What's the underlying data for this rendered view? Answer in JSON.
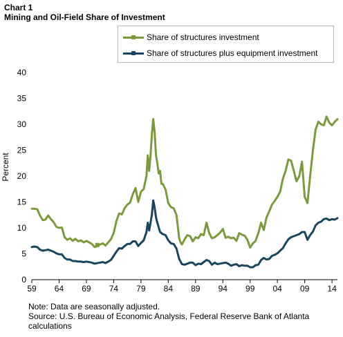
{
  "header": {
    "chart_number": "Chart 1",
    "title": "Mining and Oil-Field Share of Investment"
  },
  "notes": {
    "note": "Note: Data are seasonally adjusted.",
    "source": "Source: U.S. Bureau of Economic Analysis, Federal Reserve Bank of Atlanta",
    "source_cont": "calculations"
  },
  "colors": {
    "structures": "#7c9a3c",
    "structures_equipment": "#17455f",
    "axis": "#000000"
  },
  "chart_data": {
    "type": "line",
    "ylabel": "Percent",
    "xlabel": "",
    "xlim": [
      1959,
      2015
    ],
    "ylim": [
      0,
      40
    ],
    "x_ticks": [
      {
        "label": "59",
        "value": 1959
      },
      {
        "label": "64",
        "value": 1964
      },
      {
        "label": "69",
        "value": 1969
      },
      {
        "label": "74",
        "value": 1974
      },
      {
        "label": "79",
        "value": 1979
      },
      {
        "label": "84",
        "value": 1984
      },
      {
        "label": "89",
        "value": 1989
      },
      {
        "label": "94",
        "value": 1994
      },
      {
        "label": "99",
        "value": 1999
      },
      {
        "label": "04",
        "value": 2004
      },
      {
        "label": "09",
        "value": 2009
      },
      {
        "label": "14",
        "value": 2014
      }
    ],
    "y_ticks": [
      {
        "label": "0",
        "value": 0
      },
      {
        "label": "5",
        "value": 5
      },
      {
        "label": "10",
        "value": 10
      },
      {
        "label": "15",
        "value": 15
      },
      {
        "label": "20",
        "value": 20
      },
      {
        "label": "25",
        "value": 25
      },
      {
        "label": "30",
        "value": 30
      },
      {
        "label": "35",
        "value": 35
      },
      {
        "label": "40",
        "value": 40
      }
    ],
    "grid": false,
    "legend_position": "top-right",
    "series": [
      {
        "name": "Share of structures investment",
        "color_key": "structures",
        "x": [
          1959.0,
          1959.5,
          1960.0,
          1960.5,
          1961.0,
          1961.5,
          1962.0,
          1962.5,
          1963.0,
          1963.5,
          1964.0,
          1964.5,
          1965.0,
          1965.5,
          1966.0,
          1966.5,
          1967.0,
          1967.5,
          1968.0,
          1968.5,
          1969.0,
          1969.5,
          1970.0,
          1970.5,
          1971.0,
          1971.5,
          1972.0,
          1972.5,
          1973.0,
          1973.5,
          1974.0,
          1974.5,
          1975.0,
          1975.5,
          1976.0,
          1976.5,
          1977.0,
          1977.5,
          1978.0,
          1978.5,
          1979.0,
          1979.5,
          1980.0,
          1980.25,
          1980.5,
          1980.75,
          1981.0,
          1981.25,
          1981.5,
          1981.75,
          1982.0,
          1982.25,
          1982.5,
          1982.75,
          1983.0,
          1983.5,
          1984.0,
          1984.5,
          1985.0,
          1985.5,
          1986.0,
          1986.25,
          1986.5,
          1987.0,
          1987.5,
          1988.0,
          1988.5,
          1989.0,
          1989.5,
          1990.0,
          1990.5,
          1991.0,
          1991.5,
          1992.0,
          1992.5,
          1993.0,
          1993.5,
          1994.0,
          1994.5,
          1995.0,
          1995.5,
          1996.0,
          1996.5,
          1997.0,
          1997.5,
          1998.0,
          1998.5,
          1999.0,
          1999.5,
          2000.0,
          2000.5,
          2001.0,
          2001.5,
          2002.0,
          2002.5,
          2003.0,
          2003.5,
          2004.0,
          2004.5,
          2005.0,
          2005.5,
          2006.0,
          2006.5,
          2007.0,
          2007.5,
          2008.0,
          2008.5,
          2009.0,
          2009.5,
          2010.0,
          2010.5,
          2011.0,
          2011.5,
          2012.0,
          2012.5,
          2013.0,
          2013.5,
          2014.0,
          2014.5,
          2015.0
        ],
        "y": [
          13.7,
          13.7,
          13.6,
          12.4,
          11.5,
          11.6,
          12.4,
          11.7,
          11.1,
          10.2,
          10.0,
          10.1,
          8.2,
          7.7,
          8.0,
          7.5,
          7.9,
          7.4,
          7.6,
          7.2,
          7.5,
          7.2,
          6.9,
          6.3,
          6.5,
          6.8,
          7.0,
          6.6,
          7.2,
          7.8,
          9.0,
          11.3,
          12.8,
          12.6,
          13.8,
          14.5,
          14.9,
          16.5,
          17.7,
          15.0,
          17.0,
          17.5,
          20.0,
          24.0,
          21.0,
          24.0,
          28.0,
          31.0,
          28.5,
          24.0,
          22.5,
          20.5,
          21.0,
          18.5,
          18.5,
          17.4,
          14.8,
          14.0,
          13.8,
          12.5,
          8.0,
          7.2,
          6.8,
          7.8,
          8.6,
          8.4,
          7.4,
          8.2,
          8.0,
          8.8,
          8.6,
          11.0,
          9.0,
          8.0,
          8.2,
          8.6,
          9.1,
          9.8,
          8.1,
          8.3,
          8.0,
          8.1,
          7.5,
          9.0,
          8.7,
          8.5,
          7.7,
          6.2,
          7.0,
          7.5,
          9.0,
          11.0,
          9.6,
          12.0,
          13.2,
          14.5,
          15.2,
          16.0,
          17.0,
          19.5,
          21.0,
          23.2,
          23.0,
          21.0,
          19.0,
          20.0,
          22.8,
          16.0,
          14.8,
          20.0,
          25.0,
          29.0,
          30.5,
          30.0,
          29.8,
          31.5,
          30.3,
          29.8,
          30.5,
          31.0
        ],
        "marker_x": 1971.0,
        "marker_y": 6.7
      },
      {
        "name": "Share of structures plus equipment investment",
        "color_key": "structures_equipment",
        "x": [
          1959.0,
          1959.5,
          1960.0,
          1960.5,
          1961.0,
          1961.5,
          1962.0,
          1962.5,
          1963.0,
          1963.5,
          1964.0,
          1964.5,
          1965.0,
          1965.5,
          1966.0,
          1966.5,
          1967.0,
          1967.5,
          1968.0,
          1968.5,
          1969.0,
          1969.5,
          1970.0,
          1970.5,
          1971.0,
          1971.5,
          1972.0,
          1972.5,
          1973.0,
          1973.5,
          1974.0,
          1974.5,
          1975.0,
          1975.5,
          1976.0,
          1976.5,
          1977.0,
          1977.5,
          1978.0,
          1978.5,
          1979.0,
          1979.5,
          1980.0,
          1980.25,
          1980.5,
          1980.75,
          1981.0,
          1981.25,
          1981.5,
          1981.75,
          1982.0,
          1982.5,
          1983.0,
          1983.5,
          1984.0,
          1984.5,
          1985.0,
          1985.5,
          1986.0,
          1986.5,
          1987.0,
          1987.5,
          1988.0,
          1988.5,
          1989.0,
          1989.5,
          1990.0,
          1990.5,
          1991.0,
          1991.5,
          1992.0,
          1992.5,
          1993.0,
          1993.5,
          1994.0,
          1994.5,
          1995.0,
          1995.5,
          1996.0,
          1996.5,
          1997.0,
          1997.5,
          1998.0,
          1998.5,
          1999.0,
          1999.5,
          2000.0,
          2000.5,
          2001.0,
          2001.5,
          2002.0,
          2002.5,
          2003.0,
          2003.5,
          2004.0,
          2004.5,
          2005.0,
          2005.5,
          2006.0,
          2006.5,
          2007.0,
          2007.5,
          2008.0,
          2008.5,
          2009.0,
          2009.5,
          2010.0,
          2010.5,
          2011.0,
          2011.5,
          2012.0,
          2012.5,
          2013.0,
          2013.5,
          2014.0,
          2014.5,
          2015.0
        ],
        "y": [
          6.3,
          6.4,
          6.3,
          5.8,
          5.6,
          5.7,
          5.8,
          5.6,
          5.4,
          5.1,
          4.9,
          4.9,
          4.2,
          3.9,
          3.9,
          3.6,
          3.6,
          3.5,
          3.5,
          3.4,
          3.5,
          3.4,
          3.3,
          3.1,
          3.2,
          3.3,
          3.4,
          3.2,
          3.5,
          3.8,
          4.6,
          5.4,
          6.1,
          6.0,
          6.5,
          6.9,
          6.9,
          7.4,
          7.4,
          6.5,
          7.1,
          7.6,
          9.2,
          11.0,
          9.5,
          11.0,
          12.5,
          15.3,
          14.0,
          12.0,
          11.0,
          9.2,
          8.8,
          8.6,
          7.6,
          7.0,
          6.9,
          6.0,
          4.0,
          3.0,
          2.9,
          3.1,
          3.3,
          3.3,
          2.8,
          3.1,
          3.0,
          3.4,
          3.8,
          3.6,
          2.9,
          3.3,
          3.0,
          3.1,
          3.2,
          3.3,
          3.1,
          2.7,
          2.9,
          3.0,
          2.6,
          2.8,
          2.7,
          2.7,
          2.4,
          2.4,
          2.8,
          2.9,
          3.8,
          4.2,
          3.9,
          4.0,
          4.6,
          4.8,
          5.1,
          5.6,
          6.1,
          7.0,
          7.8,
          8.2,
          8.4,
          8.6,
          8.8,
          9.2,
          9.2,
          7.7,
          8.6,
          9.3,
          10.5,
          11.0,
          11.2,
          11.7,
          11.8,
          11.5,
          11.7,
          11.6,
          11.9
        ]
      }
    ]
  }
}
